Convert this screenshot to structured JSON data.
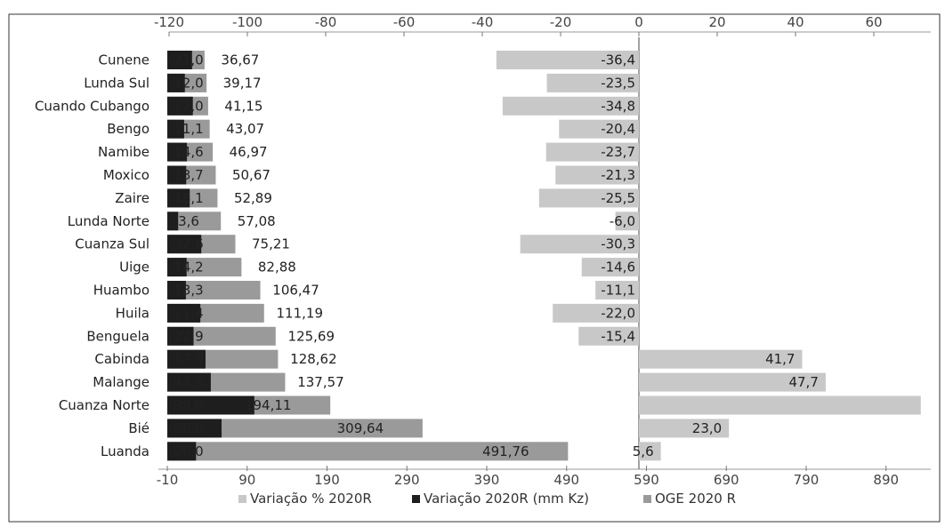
{
  "chart_data": {
    "type": "bar",
    "categories": [
      "Cunene",
      "Lunda Sul",
      "Cuando Cubango",
      "Bengo",
      "Namibe",
      "Moxico",
      "Zaire",
      "Lunda Norte",
      "Cuanza Sul",
      "Uige",
      "Huambo",
      "Huila",
      "Benguela",
      "Cabinda",
      "Malange",
      "Cuanza Norte",
      "Bié",
      "Luanda"
    ],
    "series": [
      {
        "name": "Variação % 2020R",
        "color": "#c8c8c8",
        "values": [
          -36.4,
          -23.5,
          -34.8,
          -20.4,
          -23.7,
          -21.3,
          -25.5,
          -6.0,
          -30.3,
          -14.6,
          -11.1,
          -22.0,
          -15.4,
          41.7,
          47.7,
          72.0,
          23.0,
          5.6
        ],
        "labels": [
          "-36,4",
          "-23,5",
          "-34,8",
          "-20,4",
          "-23,7",
          "-21,3",
          "-25,5",
          "-6,0",
          "-30,3",
          "-14,6",
          "-11,1",
          "-22,0",
          "-15,4",
          "41,7",
          "47,7",
          "",
          "23,0",
          "5,6"
        ]
      },
      {
        "name": "Variação 2020R (mm Kz)",
        "color": "#1e1e1e",
        "values": [
          21.0,
          12.0,
          22.0,
          11.1,
          14.6,
          13.7,
          18.1,
          3.6,
          32.6,
          14.2,
          13.3,
          31.4,
          22.9,
          37.9,
          44.5,
          99.0,
          58.0,
          26.0
        ],
        "labels": [
          "21,0",
          "12,0",
          "22,0",
          "11,1",
          "14,6",
          "13,7",
          "18,1",
          "3,6",
          "32,6",
          "14,2",
          "13,3",
          "31,4",
          "22,9",
          "37,9",
          "44,5",
          "99,0",
          "58,0",
          "26,0"
        ]
      },
      {
        "name": "OGE 2020 R",
        "color": "#9a9a9a",
        "values": [
          36.67,
          39.17,
          41.15,
          43.07,
          46.97,
          50.67,
          52.89,
          57.08,
          75.21,
          82.88,
          106.47,
          111.19,
          125.69,
          128.62,
          137.57,
          194.11,
          309.64,
          491.76
        ],
        "labels": [
          "36,67",
          "39,17",
          "41,15",
          "43,07",
          "46,97",
          "50,67",
          "52,89",
          "57,08",
          "75,21",
          "82,88",
          "106,47",
          "111,19",
          "125,69",
          "128,62",
          "137,57",
          "194,11",
          "309,64",
          "491,76"
        ]
      }
    ],
    "top_axis": {
      "min": -120,
      "max": 70,
      "ticks": [
        -120,
        -100,
        -80,
        -60,
        -40,
        -20,
        0,
        20,
        40,
        60
      ],
      "tick_labels": [
        "-120",
        "-100",
        "-80",
        "-60",
        "-40",
        "-20",
        "0",
        "20",
        "40",
        "60"
      ]
    },
    "bottom_axis": {
      "min": -10,
      "max": 930,
      "ticks": [
        -10,
        90,
        190,
        290,
        390,
        490,
        590,
        690,
        790,
        890
      ],
      "tick_labels": [
        "-10",
        "90",
        "190",
        "290",
        "390",
        "490",
        "590",
        "690",
        "790",
        "890"
      ]
    },
    "grid": false,
    "legend_position": "bottom-center"
  }
}
